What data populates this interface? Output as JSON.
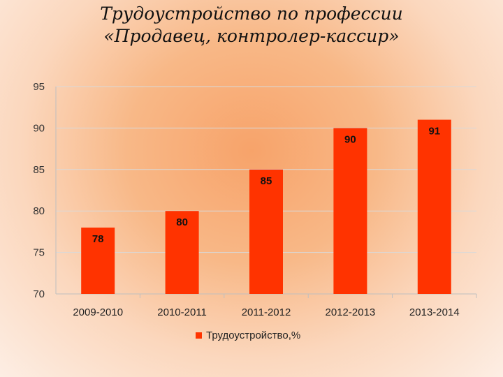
{
  "title_line1": "Трудоустройство по профессии",
  "title_line2": "«Продавец, контролер-кассир»",
  "colors": {
    "bar": "#ff3300",
    "grid": "#d9d9d9",
    "axis": "#bfbfbf"
  },
  "chart_data": {
    "type": "bar",
    "categories": [
      "2009-2010",
      "2010-2011",
      "2011-2012",
      "2012-2013",
      "2013-2014"
    ],
    "series": [
      {
        "name": "Трудоустройство,%",
        "values": [
          78,
          80,
          85,
          90,
          91
        ]
      }
    ],
    "ylim": [
      70,
      95
    ],
    "yticks": [
      70,
      75,
      80,
      85,
      90,
      95
    ],
    "grid": true,
    "legend": "bottom"
  }
}
